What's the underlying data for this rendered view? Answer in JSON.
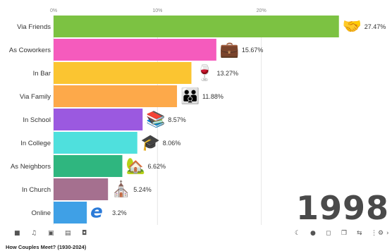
{
  "chart_data": {
    "type": "bar",
    "orientation": "horizontal",
    "title": "How Couples Meet? (1930-2024)",
    "year": "1998",
    "xlim": [
      0,
      30
    ],
    "x_ticks": [
      0,
      10,
      20
    ],
    "x_tick_labels": [
      "0%",
      "10%",
      "20%"
    ],
    "grid": true,
    "categories": [
      "Via Friends",
      "As Coworkers",
      "In Bar",
      "Via Family",
      "In School",
      "In College",
      "As Neighbors",
      "In Church",
      "Online"
    ],
    "values": [
      27.47,
      15.67,
      13.27,
      11.88,
      8.57,
      8.06,
      6.62,
      5.24,
      3.2
    ],
    "value_labels": [
      "27.47%",
      "15.67%",
      "13.27%",
      "11.88%",
      "8.57%",
      "8.06%",
      "6.62%",
      "5.24%",
      "3.2%"
    ],
    "colors": [
      "#7cc242",
      "#f55bbd",
      "#fbc531",
      "#fda94a",
      "#9b59e0",
      "#4fe0dd",
      "#2fb67f",
      "#a5708f",
      "#3fa0e6"
    ],
    "icons": [
      "handshake-icon",
      "briefcase-icon",
      "wine-glass-icon",
      "family-icon",
      "books-icon",
      "graduate-icon",
      "house-icon",
      "church-icon",
      "browser-icon"
    ]
  },
  "icon_glyphs": [
    "🤝",
    "💼",
    "🍷",
    "👪",
    "📚",
    "🎓",
    "🏡",
    "⛪",
    "e"
  ],
  "toolbar": {
    "camera_icon": "■",
    "music_icon": "♫",
    "image_icon": "▣",
    "subtitle_icon": "▤",
    "photo_icon": "◘",
    "theme_icon": "☾",
    "bulb_icon": "●",
    "screen_icon": "◻",
    "copy_icon": "❐",
    "loop_icon": "⇆",
    "more_icon": "⋮",
    "settings_icon": "⚙",
    "next_icon": "›"
  }
}
